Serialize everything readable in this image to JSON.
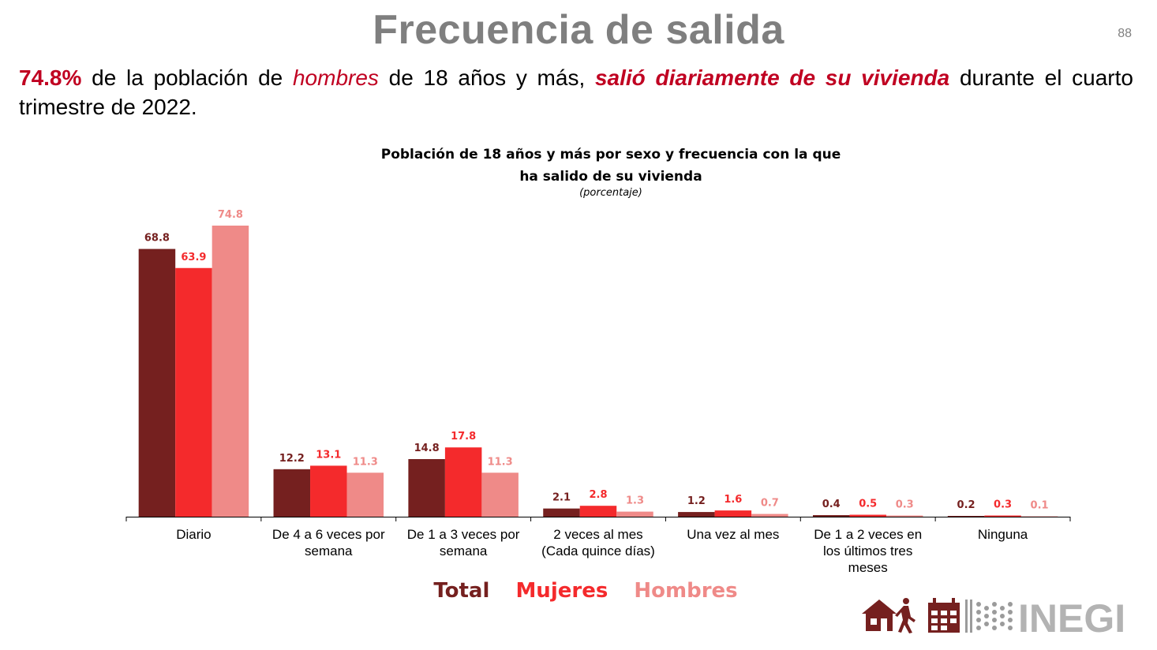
{
  "slide": {
    "title": "Frecuencia de salida",
    "page_number": "88"
  },
  "subtitle": {
    "pct": "74.8%",
    "t1": " de la población de ",
    "hombres": "hombres",
    "t2": " de 18 años y más, ",
    "emphasis": "salió diariamente de su vivienda",
    "t3": " durante el cuarto trimestre de 2022."
  },
  "chart_data": {
    "type": "bar",
    "title": "Población de 18 años y más por sexo y frecuencia con la que ha salido de su vivienda",
    "title_line1": "Población de 18 años y más por sexo y frecuencia con la que",
    "title_line2": "ha salido de su vivienda",
    "unit": "(porcentaje)",
    "categories": [
      [
        "Diario"
      ],
      [
        "De 4 a 6 veces por",
        "semana"
      ],
      [
        "De 1 a 3 veces por",
        "semana"
      ],
      [
        "2 veces al mes",
        "(Cada quince días)"
      ],
      [
        "Una vez al mes"
      ],
      [
        "De 1 a 2 veces en",
        "los últimos tres",
        "meses"
      ],
      [
        "Ninguna"
      ]
    ],
    "series": [
      {
        "name": "Total",
        "color": "#75201f",
        "values": [
          68.8,
          12.2,
          14.8,
          2.1,
          1.2,
          0.4,
          0.2
        ]
      },
      {
        "name": "Mujeres",
        "color": "#f42a2c",
        "values": [
          63.9,
          13.1,
          17.8,
          2.8,
          1.6,
          0.5,
          0.3
        ]
      },
      {
        "name": "Hombres",
        "color": "#ef8a88",
        "values": [
          74.8,
          11.3,
          11.3,
          1.3,
          0.7,
          0.3,
          0.1
        ]
      }
    ],
    "ylim": [
      0,
      75
    ],
    "grid": false,
    "legend_position": "bottom"
  },
  "legend": {
    "total": "Total",
    "mujeres": "Mujeres",
    "hombres": "Hombres"
  },
  "logo": {
    "text": "INEGI",
    "icons": [
      "house-icon",
      "walking-person-icon",
      "calendar-icon"
    ]
  }
}
